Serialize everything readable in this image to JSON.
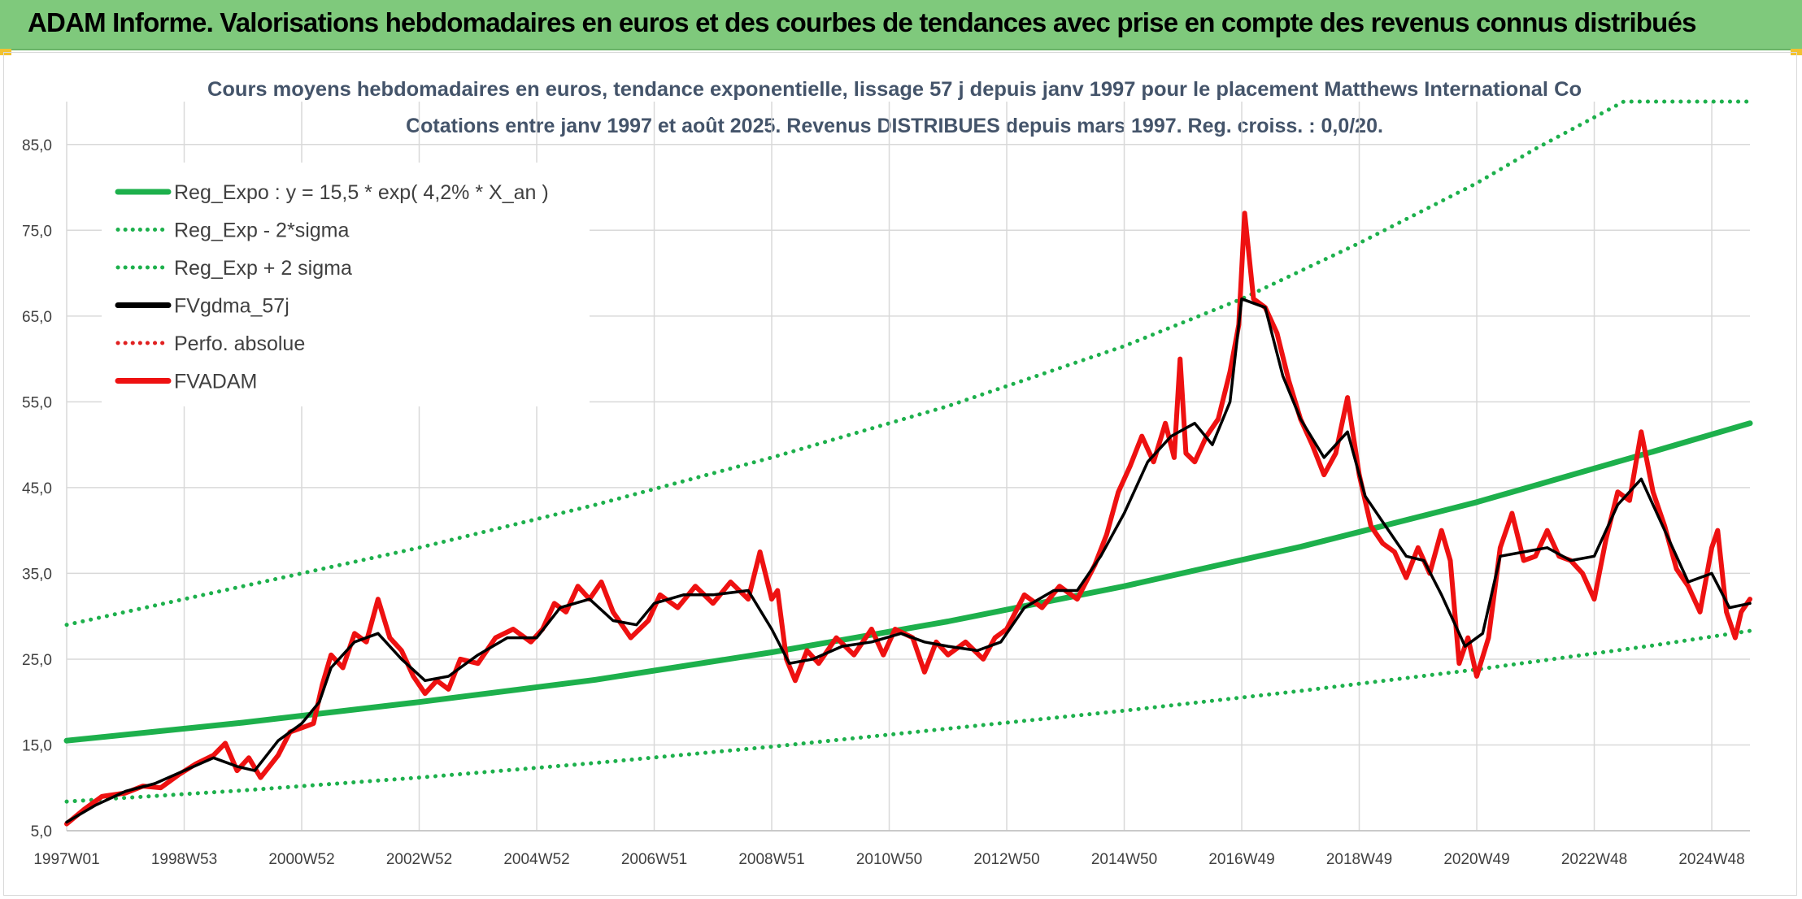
{
  "header": {
    "title": "ADAM Informe. Valorisations hebdomadaires en euros et des courbes de tendances avec prise en compte des revenus connus distribués"
  },
  "chart_data": {
    "type": "line",
    "title": "Cours moyens hebdomadaires en euros, tendance exponentielle, lissage 57 j depuis janv 1997 pour le placement Matthews International Co",
    "subtitle": "Cotations entre janv 1997 et août 2025. Revenus DISTRIBUES depuis mars 1997. Reg. croiss. : 0,0/20.",
    "xlabel": "",
    "ylabel": "",
    "ylim": [
      5,
      90
    ],
    "y_ticks": [
      "5,0",
      "15,0",
      "25,0",
      "35,0",
      "45,0",
      "55,0",
      "65,0",
      "75,0",
      "85,0"
    ],
    "x_ticks": [
      {
        "label": "1997W01",
        "t": 1997.0
      },
      {
        "label": "1998W53",
        "t": 1999.0
      },
      {
        "label": "2000W52",
        "t": 2001.0
      },
      {
        "label": "2002W52",
        "t": 2003.0
      },
      {
        "label": "2004W52",
        "t": 2005.0
      },
      {
        "label": "2006W51",
        "t": 2007.0
      },
      {
        "label": "2008W51",
        "t": 2009.0
      },
      {
        "label": "2010W50",
        "t": 2011.0
      },
      {
        "label": "2012W50",
        "t": 2013.0
      },
      {
        "label": "2014W50",
        "t": 2015.0
      },
      {
        "label": "2016W49",
        "t": 2017.0
      },
      {
        "label": "2018W49",
        "t": 2019.0
      },
      {
        "label": "2020W49",
        "t": 2021.0
      },
      {
        "label": "2022W48",
        "t": 2023.0
      },
      {
        "label": "2024W48",
        "t": 2025.0
      }
    ],
    "grid": true,
    "legend_position": "top-left",
    "x_range": [
      1997.0,
      2025.65
    ],
    "series": [
      {
        "name": "Reg_Expo : y = 15,5 * exp( 4,2% *  X_an )",
        "color": "#1db04c",
        "style": "solid",
        "points": [
          [
            1997.0,
            15.5
          ],
          [
            2000.0,
            17.6
          ],
          [
            2003.0,
            20.0
          ],
          [
            2006.0,
            22.6
          ],
          [
            2009.0,
            25.8
          ],
          [
            2012.0,
            29.4
          ],
          [
            2015.0,
            33.5
          ],
          [
            2018.0,
            38.1
          ],
          [
            2021.0,
            43.3
          ],
          [
            2024.0,
            49.2
          ],
          [
            2025.65,
            52.5
          ]
        ]
      },
      {
        "name": "Reg_Exp - 2*sigma",
        "color": "#1db04c",
        "style": "dotted",
        "points": [
          [
            1997.0,
            8.4
          ],
          [
            2000.0,
            9.7
          ],
          [
            2003.0,
            11.2
          ],
          [
            2006.0,
            12.9
          ],
          [
            2009.0,
            14.8
          ],
          [
            2012.0,
            16.9
          ],
          [
            2015.0,
            19.0
          ],
          [
            2018.0,
            21.3
          ],
          [
            2021.0,
            23.8
          ],
          [
            2024.0,
            26.6
          ],
          [
            2025.65,
            28.3
          ]
        ]
      },
      {
        "name": "Reg_Exp + 2 sigma",
        "color": "#1db04c",
        "style": "dotted",
        "points": [
          [
            1997.0,
            29.0
          ],
          [
            2000.0,
            33.5
          ],
          [
            2003.0,
            38.0
          ],
          [
            2006.0,
            43.0
          ],
          [
            2009.0,
            48.5
          ],
          [
            2012.0,
            54.5
          ],
          [
            2015.0,
            61.5
          ],
          [
            2017.0,
            67.0
          ],
          [
            2019.0,
            73.5
          ],
          [
            2021.0,
            80.5
          ],
          [
            2022.0,
            84.5
          ],
          [
            2023.5,
            90.0
          ],
          [
            2025.65,
            90.0
          ]
        ]
      },
      {
        "name": "FVgdma_57j",
        "color": "#000000",
        "style": "solid",
        "points": [
          [
            1997.0,
            6.0
          ],
          [
            1997.5,
            8.0
          ],
          [
            1998.0,
            9.6
          ],
          [
            1998.5,
            10.5
          ],
          [
            1999.0,
            12.0
          ],
          [
            1999.5,
            13.5
          ],
          [
            1999.9,
            12.5
          ],
          [
            2000.2,
            12.0
          ],
          [
            2000.6,
            15.5
          ],
          [
            2001.0,
            17.5
          ],
          [
            2001.3,
            20.0
          ],
          [
            2001.5,
            24.0
          ],
          [
            2001.9,
            27.0
          ],
          [
            2002.3,
            28.0
          ],
          [
            2002.7,
            25.0
          ],
          [
            2003.1,
            22.5
          ],
          [
            2003.5,
            23.0
          ],
          [
            2004.0,
            25.5
          ],
          [
            2004.5,
            27.5
          ],
          [
            2005.0,
            27.5
          ],
          [
            2005.4,
            31.0
          ],
          [
            2005.9,
            32.0
          ],
          [
            2006.3,
            29.5
          ],
          [
            2006.7,
            29.0
          ],
          [
            2007.0,
            31.5
          ],
          [
            2007.5,
            32.5
          ],
          [
            2008.0,
            32.5
          ],
          [
            2008.6,
            33.0
          ],
          [
            2009.0,
            28.5
          ],
          [
            2009.3,
            24.5
          ],
          [
            2009.7,
            25.0
          ],
          [
            2010.2,
            26.5
          ],
          [
            2010.7,
            27.0
          ],
          [
            2011.2,
            28.0
          ],
          [
            2011.6,
            27.0
          ],
          [
            2012.0,
            26.5
          ],
          [
            2012.5,
            26.0
          ],
          [
            2012.9,
            27.0
          ],
          [
            2013.3,
            31.0
          ],
          [
            2013.8,
            33.0
          ],
          [
            2014.2,
            33.0
          ],
          [
            2014.6,
            37.0
          ],
          [
            2015.0,
            42.0
          ],
          [
            2015.4,
            48.0
          ],
          [
            2015.8,
            51.0
          ],
          [
            2016.2,
            52.5
          ],
          [
            2016.5,
            50.0
          ],
          [
            2016.8,
            55.0
          ],
          [
            2017.0,
            67.0
          ],
          [
            2017.4,
            66.0
          ],
          [
            2017.7,
            58.0
          ],
          [
            2018.0,
            53.0
          ],
          [
            2018.4,
            48.5
          ],
          [
            2018.8,
            51.5
          ],
          [
            2019.1,
            44.0
          ],
          [
            2019.4,
            41.0
          ],
          [
            2019.8,
            37.0
          ],
          [
            2020.1,
            36.5
          ],
          [
            2020.4,
            32.5
          ],
          [
            2020.8,
            26.5
          ],
          [
            2021.1,
            28.0
          ],
          [
            2021.4,
            37.0
          ],
          [
            2021.8,
            37.5
          ],
          [
            2022.2,
            38.0
          ],
          [
            2022.6,
            36.5
          ],
          [
            2023.0,
            37.0
          ],
          [
            2023.4,
            43.0
          ],
          [
            2023.8,
            46.0
          ],
          [
            2024.2,
            40.0
          ],
          [
            2024.6,
            34.0
          ],
          [
            2025.0,
            35.0
          ],
          [
            2025.3,
            31.0
          ],
          [
            2025.65,
            31.5
          ]
        ]
      },
      {
        "name": "Perfo. absolue",
        "color": "#e02020",
        "style": "dotted",
        "points": []
      },
      {
        "name": "FVADAM",
        "color": "#ee1111",
        "style": "solid",
        "points": [
          [
            1997.0,
            5.8
          ],
          [
            1997.3,
            7.5
          ],
          [
            1997.6,
            9.0
          ],
          [
            1998.0,
            9.4
          ],
          [
            1998.3,
            10.2
          ],
          [
            1998.6,
            10.0
          ],
          [
            1998.9,
            11.5
          ],
          [
            1999.2,
            12.8
          ],
          [
            1999.5,
            13.8
          ],
          [
            1999.7,
            15.2
          ],
          [
            1999.9,
            12.0
          ],
          [
            2000.1,
            13.5
          ],
          [
            2000.3,
            11.2
          ],
          [
            2000.6,
            13.8
          ],
          [
            2000.8,
            16.5
          ],
          [
            2001.0,
            17.0
          ],
          [
            2001.2,
            17.5
          ],
          [
            2001.35,
            22.0
          ],
          [
            2001.5,
            25.5
          ],
          [
            2001.7,
            24.0
          ],
          [
            2001.9,
            28.0
          ],
          [
            2002.1,
            27.0
          ],
          [
            2002.3,
            32.0
          ],
          [
            2002.5,
            27.5
          ],
          [
            2002.7,
            26.0
          ],
          [
            2002.9,
            23.0
          ],
          [
            2003.1,
            21.0
          ],
          [
            2003.3,
            22.5
          ],
          [
            2003.5,
            21.5
          ],
          [
            2003.7,
            25.0
          ],
          [
            2004.0,
            24.5
          ],
          [
            2004.3,
            27.5
          ],
          [
            2004.6,
            28.5
          ],
          [
            2004.9,
            27.0
          ],
          [
            2005.1,
            28.5
          ],
          [
            2005.3,
            31.5
          ],
          [
            2005.5,
            30.5
          ],
          [
            2005.7,
            33.5
          ],
          [
            2005.9,
            32.0
          ],
          [
            2006.1,
            34.0
          ],
          [
            2006.3,
            30.5
          ],
          [
            2006.6,
            27.5
          ],
          [
            2006.9,
            29.5
          ],
          [
            2007.1,
            32.5
          ],
          [
            2007.4,
            31.0
          ],
          [
            2007.7,
            33.5
          ],
          [
            2008.0,
            31.5
          ],
          [
            2008.3,
            34.0
          ],
          [
            2008.6,
            32.0
          ],
          [
            2008.8,
            37.5
          ],
          [
            2009.0,
            32.0
          ],
          [
            2009.1,
            33.0
          ],
          [
            2009.25,
            25.0
          ],
          [
            2009.4,
            22.5
          ],
          [
            2009.6,
            26.0
          ],
          [
            2009.8,
            24.5
          ],
          [
            2010.1,
            27.5
          ],
          [
            2010.4,
            25.5
          ],
          [
            2010.7,
            28.5
          ],
          [
            2010.9,
            25.5
          ],
          [
            2011.1,
            28.5
          ],
          [
            2011.4,
            27.5
          ],
          [
            2011.6,
            23.5
          ],
          [
            2011.8,
            27.0
          ],
          [
            2012.0,
            25.5
          ],
          [
            2012.3,
            27.0
          ],
          [
            2012.6,
            25.0
          ],
          [
            2012.8,
            27.5
          ],
          [
            2013.0,
            28.5
          ],
          [
            2013.3,
            32.5
          ],
          [
            2013.6,
            31.0
          ],
          [
            2013.9,
            33.5
          ],
          [
            2014.2,
            32.0
          ],
          [
            2014.5,
            36.0
          ],
          [
            2014.7,
            39.5
          ],
          [
            2014.9,
            44.5
          ],
          [
            2015.1,
            47.5
          ],
          [
            2015.3,
            51.0
          ],
          [
            2015.5,
            48.0
          ],
          [
            2015.7,
            52.5
          ],
          [
            2015.85,
            48.5
          ],
          [
            2015.95,
            60.0
          ],
          [
            2016.05,
            49.0
          ],
          [
            2016.2,
            48.0
          ],
          [
            2016.4,
            51.0
          ],
          [
            2016.6,
            53.0
          ],
          [
            2016.8,
            58.5
          ],
          [
            2016.95,
            64.0
          ],
          [
            2017.05,
            77.0
          ],
          [
            2017.2,
            67.0
          ],
          [
            2017.4,
            66.0
          ],
          [
            2017.6,
            63.0
          ],
          [
            2017.8,
            57.5
          ],
          [
            2018.0,
            53.0
          ],
          [
            2018.2,
            50.0
          ],
          [
            2018.4,
            46.5
          ],
          [
            2018.6,
            49.0
          ],
          [
            2018.8,
            55.5
          ],
          [
            2019.0,
            46.5
          ],
          [
            2019.2,
            40.5
          ],
          [
            2019.4,
            38.5
          ],
          [
            2019.6,
            37.5
          ],
          [
            2019.8,
            34.5
          ],
          [
            2020.0,
            38.0
          ],
          [
            2020.2,
            35.0
          ],
          [
            2020.4,
            40.0
          ],
          [
            2020.55,
            36.5
          ],
          [
            2020.7,
            24.5
          ],
          [
            2020.85,
            27.5
          ],
          [
            2021.0,
            23.0
          ],
          [
            2021.2,
            27.5
          ],
          [
            2021.4,
            38.0
          ],
          [
            2021.6,
            42.0
          ],
          [
            2021.8,
            36.5
          ],
          [
            2022.0,
            37.0
          ],
          [
            2022.2,
            40.0
          ],
          [
            2022.4,
            37.0
          ],
          [
            2022.6,
            36.5
          ],
          [
            2022.8,
            35.0
          ],
          [
            2023.0,
            32.0
          ],
          [
            2023.2,
            39.0
          ],
          [
            2023.4,
            44.5
          ],
          [
            2023.6,
            43.5
          ],
          [
            2023.8,
            51.5
          ],
          [
            2024.0,
            44.5
          ],
          [
            2024.2,
            40.5
          ],
          [
            2024.4,
            35.5
          ],
          [
            2024.6,
            33.5
          ],
          [
            2024.8,
            30.5
          ],
          [
            2025.0,
            38.0
          ],
          [
            2025.1,
            40.0
          ],
          [
            2025.25,
            30.5
          ],
          [
            2025.4,
            27.5
          ],
          [
            2025.5,
            30.5
          ],
          [
            2025.65,
            32.0
          ]
        ]
      }
    ]
  }
}
